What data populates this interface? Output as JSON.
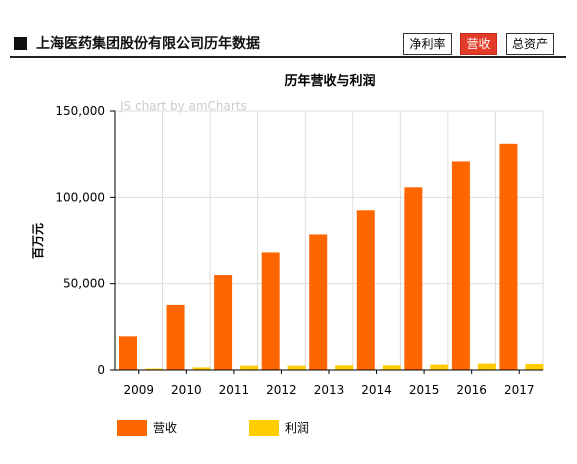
{
  "header": {
    "title": "上海医药集团股份有限公司历年数据",
    "tabs": [
      {
        "label": "净利率",
        "active": false
      },
      {
        "label": "营收",
        "active": true
      },
      {
        "label": "总资产",
        "active": false
      }
    ]
  },
  "watermark": "JS chart by amCharts",
  "colors": {
    "revenue": "#ff6600",
    "profit": "#ffcc00",
    "tab_active": "#e23b27",
    "grid": "#dddddd"
  },
  "chart_data": {
    "type": "bar",
    "title": "历年营收与利润",
    "ylabel": "百万元",
    "xlabel": "",
    "categories": [
      "2009",
      "2010",
      "2011",
      "2012",
      "2013",
      "2014",
      "2015",
      "2016",
      "2017"
    ],
    "series": [
      {
        "name": "营收",
        "values": [
          19500,
          37700,
          55000,
          68100,
          78500,
          92500,
          105800,
          120800,
          131000
        ]
      },
      {
        "name": "利润",
        "values": [
          800,
          1500,
          2500,
          2500,
          2700,
          2700,
          3100,
          3700,
          3500
        ]
      }
    ],
    "ylim": [
      0,
      150000
    ],
    "yticks": [
      0,
      50000,
      100000,
      150000
    ],
    "ytick_labels": [
      "0",
      "50,000",
      "100,000",
      "150,000"
    ],
    "grid": true,
    "legend": "bottom-left"
  }
}
